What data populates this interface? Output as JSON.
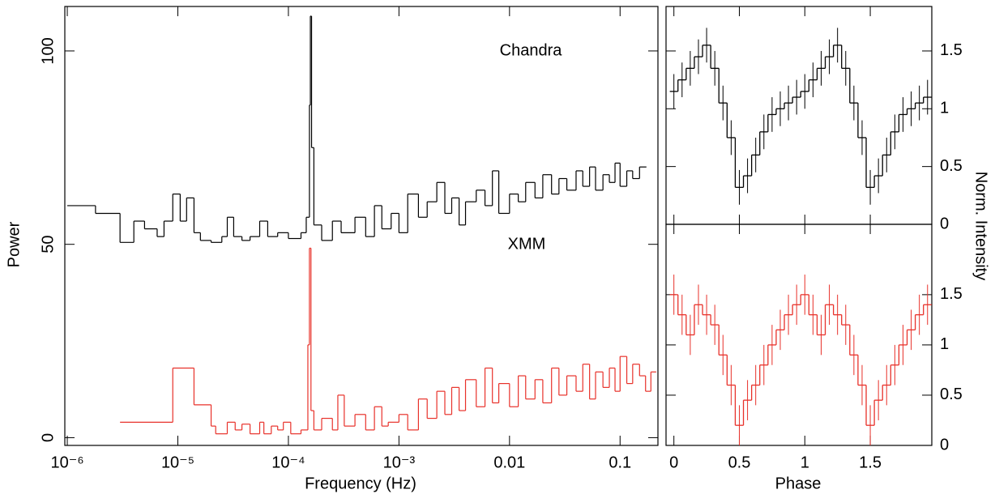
{
  "chart_data": [
    {
      "type": "step",
      "xlabel": "Frequency (Hz)",
      "ylabel": "Power",
      "xscale": "log",
      "xlim": [
        9.5e-07,
        0.22
      ],
      "ylim": [
        -2,
        111.5
      ],
      "xticks": [
        {
          "value": 1e-06,
          "label": "10⁻⁶"
        },
        {
          "value": 1e-05,
          "label": "10⁻⁵"
        },
        {
          "value": 0.0001,
          "label": "10⁻⁴"
        },
        {
          "value": 0.001,
          "label": "10⁻³"
        },
        0.01,
        0.1
      ],
      "yticks": [
        0,
        50,
        100
      ],
      "series": [
        {
          "name": "Chandra",
          "color": "#000000",
          "x": [
            1e-06,
            1.8e-06,
            3e-06,
            4e-06,
            5e-06,
            6.5e-06,
            7.5e-06,
            9e-06,
            1.05e-05,
            1.2e-05,
            1.4e-05,
            1.6e-05,
            2e-05,
            2.5e-05,
            2.8e-05,
            3.2e-05,
            3.8e-05,
            4.5e-05,
            5.5e-05,
            6.5e-05,
            8e-05,
            0.0001,
            0.00013,
            0.000145,
            0.000155,
            0.000158,
            0.000162,
            0.00017,
            0.0002,
            0.00025,
            0.0003,
            0.0004,
            0.0005,
            0.0006,
            0.0007,
            0.00085,
            0.001,
            0.0012,
            0.0015,
            0.0018,
            0.0022,
            0.0026,
            0.003,
            0.0035,
            0.004,
            0.005,
            0.006,
            0.007,
            0.008,
            0.01,
            0.012,
            0.014,
            0.017,
            0.02,
            0.024,
            0.028,
            0.033,
            0.04,
            0.046,
            0.053,
            0.06,
            0.07,
            0.08,
            0.09,
            0.1,
            0.115,
            0.13,
            0.15
          ],
          "values": [
            60,
            58,
            50.5,
            56,
            54,
            52,
            56,
            63,
            56,
            62,
            53,
            51,
            50.5,
            52,
            57,
            52,
            51,
            52,
            56,
            52,
            53,
            51.5,
            53,
            57,
            86,
            109,
            75,
            55,
            51,
            56,
            53,
            57,
            52,
            60,
            54,
            58,
            53,
            63,
            57,
            61,
            66,
            58,
            62,
            55,
            61,
            64,
            60,
            69,
            58,
            63,
            61,
            66,
            62,
            68,
            63,
            67,
            64,
            69,
            65,
            70,
            64,
            68,
            66,
            71,
            65,
            69,
            67,
            70
          ]
        },
        {
          "name": "XMM",
          "color": "#e8312a",
          "x": [
            3e-06,
            9e-06,
            1.4e-05,
            2e-05,
            2.2e-05,
            2.8e-05,
            3.3e-05,
            3.8e-05,
            4.5e-05,
            5.5e-05,
            6e-05,
            7e-05,
            8e-05,
            9e-05,
            0.000105,
            0.00013,
            0.00015,
            0.000155,
            0.00016,
            0.00017,
            0.0002,
            0.00025,
            0.00028,
            0.00032,
            0.0004,
            0.0005,
            0.0006,
            0.0007,
            0.0008,
            0.001,
            0.0012,
            0.0015,
            0.0018,
            0.0022,
            0.0026,
            0.003,
            0.0035,
            0.004,
            0.005,
            0.006,
            0.007,
            0.008,
            0.01,
            0.012,
            0.014,
            0.017,
            0.02,
            0.024,
            0.028,
            0.033,
            0.04,
            0.046,
            0.053,
            0.06,
            0.07,
            0.08,
            0.09,
            0.1,
            0.115,
            0.13,
            0.15,
            0.17,
            0.19
          ],
          "values": [
            4,
            18,
            8.5,
            3,
            1,
            4,
            2,
            3.5,
            1,
            4,
            1,
            3,
            2,
            4,
            1,
            2,
            24,
            49,
            7,
            2,
            5,
            2,
            11,
            3,
            6,
            2,
            8,
            3,
            4,
            6,
            2,
            10,
            5,
            12,
            6,
            13,
            7,
            15,
            8,
            18,
            9,
            14,
            8,
            16,
            10,
            15,
            9,
            18,
            11,
            16,
            12,
            19,
            10,
            17,
            13,
            18,
            12,
            21,
            14,
            19,
            16,
            12,
            17
          ]
        }
      ]
    },
    {
      "type": "errorstep",
      "ylabel": "Norm. Intensity",
      "xlim": [
        -0.06,
        1.97
      ],
      "ylim": [
        0,
        1.885
      ],
      "xticks": [
        0,
        0.5,
        1,
        1.5
      ],
      "yticks": [
        0,
        0.5,
        1,
        1.5
      ],
      "series": [
        {
          "color": "#000000",
          "x": [
            0,
            0.0625,
            0.125,
            0.1875,
            0.25,
            0.3125,
            0.375,
            0.4375,
            0.5,
            0.5625,
            0.625,
            0.6875,
            0.75,
            0.8125,
            0.875,
            0.9375,
            1,
            1.0625,
            1.125,
            1.1875,
            1.25,
            1.3125,
            1.375,
            1.4375,
            1.5,
            1.5625,
            1.625,
            1.6875,
            1.75,
            1.8125,
            1.875,
            1.9375
          ],
          "values": [
            1.15,
            1.25,
            1.35,
            1.45,
            1.55,
            1.35,
            1.05,
            0.75,
            0.32,
            0.42,
            0.6,
            0.8,
            0.95,
            1.0,
            1.05,
            1.1,
            1.15,
            1.25,
            1.35,
            1.45,
            1.55,
            1.35,
            1.05,
            0.75,
            0.32,
            0.42,
            0.6,
            0.8,
            0.95,
            1.0,
            1.05,
            1.1
          ],
          "errors": [
            0.15,
            0.15,
            0.15,
            0.15,
            0.15,
            0.15,
            0.15,
            0.15,
            0.15,
            0.15,
            0.15,
            0.15,
            0.15,
            0.15,
            0.15,
            0.15,
            0.15,
            0.15,
            0.15,
            0.15,
            0.15,
            0.15,
            0.15,
            0.15,
            0.15,
            0.15,
            0.15,
            0.15,
            0.15,
            0.15,
            0.15,
            0.15
          ]
        }
      ]
    },
    {
      "type": "errorstep",
      "xlabel": "Phase",
      "xlim": [
        -0.06,
        1.97
      ],
      "ylim": [
        0,
        2.2
      ],
      "xticks": [
        0,
        0.5,
        1,
        1.5
      ],
      "yticks": [
        0,
        0.5,
        1,
        1.5
      ],
      "series": [
        {
          "color": "#e8312a",
          "x": [
            0,
            0.0625,
            0.125,
            0.1875,
            0.25,
            0.3125,
            0.375,
            0.4375,
            0.5,
            0.5625,
            0.625,
            0.6875,
            0.75,
            0.8125,
            0.875,
            0.9375,
            1,
            1.0625,
            1.125,
            1.1875,
            1.25,
            1.3125,
            1.375,
            1.4375,
            1.5,
            1.5625,
            1.625,
            1.6875,
            1.75,
            1.8125,
            1.875,
            1.9375
          ],
          "values": [
            1.5,
            1.3,
            1.1,
            1.4,
            1.3,
            1.2,
            0.9,
            0.6,
            0.2,
            0.45,
            0.6,
            0.8,
            1.0,
            1.15,
            1.3,
            1.4,
            1.5,
            1.3,
            1.1,
            1.4,
            1.3,
            1.2,
            0.9,
            0.6,
            0.2,
            0.45,
            0.6,
            0.8,
            1.0,
            1.15,
            1.3,
            1.4
          ],
          "errors": [
            0.2,
            0.2,
            0.2,
            0.2,
            0.2,
            0.2,
            0.2,
            0.2,
            0.2,
            0.2,
            0.2,
            0.2,
            0.2,
            0.2,
            0.2,
            0.2,
            0.2,
            0.2,
            0.2,
            0.2,
            0.2,
            0.2,
            0.2,
            0.2,
            0.2,
            0.2,
            0.2,
            0.2,
            0.2,
            0.2,
            0.2,
            0.2
          ]
        }
      ]
    }
  ]
}
